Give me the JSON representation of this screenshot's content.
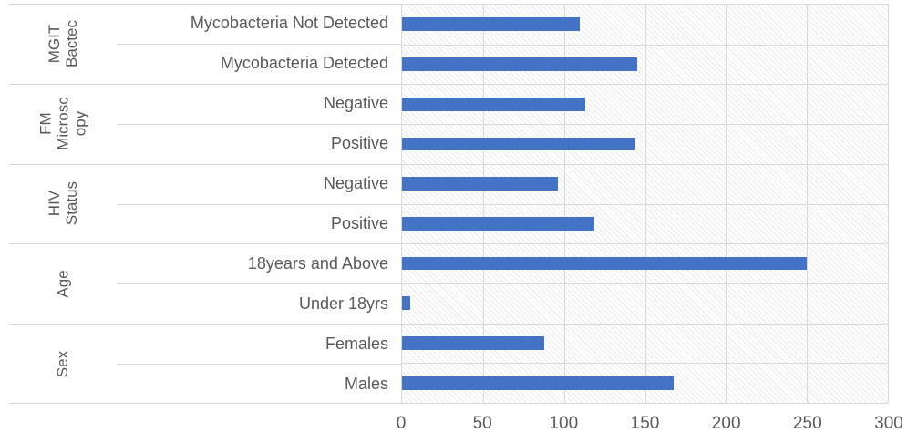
{
  "chart_data": {
    "type": "bar",
    "orientation": "horizontal",
    "title": "",
    "xlabel": "",
    "ylabel": "",
    "xlim": [
      0,
      300
    ],
    "xticks": [
      0,
      50,
      100,
      150,
      200,
      250,
      300
    ],
    "grid": true,
    "legend": false,
    "plot_background": "diagonal-hatch",
    "colors": {
      "bar": "#4472C4",
      "gridline": "#D9D9D9",
      "text": "#595959",
      "hatch": "#EAEAEA"
    },
    "groups": [
      {
        "label": "MGIT\nBactec",
        "items": [
          {
            "label": "Mycobacteria Not Detected",
            "value": 110
          },
          {
            "label": "Mycobacteria Detected",
            "value": 145
          }
        ]
      },
      {
        "label": "FM\nMicrosc\nopy",
        "items": [
          {
            "label": "Negative",
            "value": 113
          },
          {
            "label": "Positive",
            "value": 144
          }
        ]
      },
      {
        "label": "HIV\nStatus",
        "items": [
          {
            "label": "Negative",
            "value": 96
          },
          {
            "label": "Positive",
            "value": 119
          }
        ]
      },
      {
        "label": "Age",
        "items": [
          {
            "label": "18years and Above",
            "value": 250
          },
          {
            "label": "Under 18yrs",
            "value": 5
          }
        ]
      },
      {
        "label": "Sex",
        "items": [
          {
            "label": "Females",
            "value": 88
          },
          {
            "label": "Males",
            "value": 168
          }
        ]
      }
    ],
    "categories": [
      "Mycobacteria Not Detected",
      "Mycobacteria Detected",
      "Negative",
      "Positive",
      "Negative",
      "Positive",
      "18years and Above",
      "Under 18yrs",
      "Females",
      "Males"
    ],
    "values": [
      110,
      145,
      113,
      144,
      96,
      119,
      250,
      5,
      88,
      168
    ]
  }
}
